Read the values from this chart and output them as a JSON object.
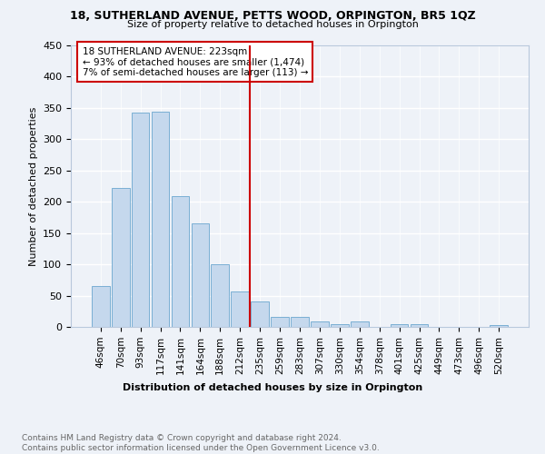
{
  "title1": "18, SUTHERLAND AVENUE, PETTS WOOD, ORPINGTON, BR5 1QZ",
  "title2": "Size of property relative to detached houses in Orpington",
  "xlabel": "Distribution of detached houses by size in Orpington",
  "ylabel": "Number of detached properties",
  "categories": [
    "46sqm",
    "70sqm",
    "93sqm",
    "117sqm",
    "141sqm",
    "164sqm",
    "188sqm",
    "212sqm",
    "235sqm",
    "259sqm",
    "283sqm",
    "307sqm",
    "330sqm",
    "354sqm",
    "378sqm",
    "401sqm",
    "425sqm",
    "449sqm",
    "473sqm",
    "496sqm",
    "520sqm"
  ],
  "values": [
    65,
    222,
    343,
    344,
    209,
    166,
    100,
    56,
    40,
    16,
    16,
    8,
    5,
    8,
    0,
    5,
    5,
    0,
    0,
    0,
    3
  ],
  "bar_color": "#c5d8ed",
  "bar_edge_color": "#7aafd4",
  "vline_color": "#cc0000",
  "annotation_text": "18 SUTHERLAND AVENUE: 223sqm\n← 93% of detached houses are smaller (1,474)\n7% of semi-detached houses are larger (113) →",
  "annotation_box_edge_color": "#cc0000",
  "ylim": [
    0,
    450
  ],
  "yticks": [
    0,
    50,
    100,
    150,
    200,
    250,
    300,
    350,
    400,
    450
  ],
  "footer": "Contains HM Land Registry data © Crown copyright and database right 2024.\nContains public sector information licensed under the Open Government Licence v3.0.",
  "bg_color": "#eef2f8",
  "plot_bg_color": "#eef2f8",
  "grid_color": "#ffffff"
}
